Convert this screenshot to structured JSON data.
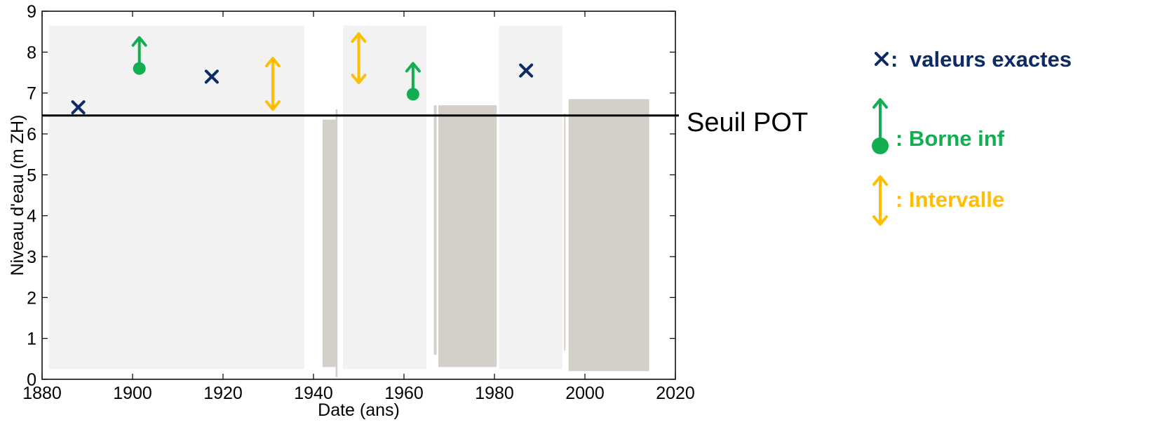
{
  "colors": {
    "exact": "#0b2a66",
    "lower_bound": "#13ad52",
    "interval": "#ffbe00",
    "gauge": "#d4cfc8",
    "historic_period": "#f2f2f2",
    "threshold": "#000000"
  },
  "chart_data": {
    "type": "scatter",
    "xlabel": "Date (ans)",
    "ylabel": "Niveau d'eau (m ZH)",
    "xlim": [
      1880,
      2020
    ],
    "ylim": [
      0,
      9
    ],
    "xticks": [
      1880,
      1900,
      1920,
      1940,
      1960,
      1980,
      2000,
      2020
    ],
    "yticks": [
      0,
      1,
      2,
      3,
      4,
      5,
      6,
      7,
      8,
      9
    ],
    "grid": false,
    "threshold": {
      "label": "Seuil POT",
      "value": 6.45
    },
    "historic_periods": [
      {
        "start": 1881.5,
        "end": 1938,
        "ymin": 0.25,
        "ymax": 8.65
      },
      {
        "start": 1946.5,
        "end": 1965,
        "ymin": 0.25,
        "ymax": 8.65
      },
      {
        "start": 1981,
        "end": 1995,
        "ymin": 0.25,
        "ymax": 8.65
      }
    ],
    "exact_values": [
      {
        "x": 1888,
        "y": 6.65
      },
      {
        "x": 1917.5,
        "y": 7.4
      },
      {
        "x": 1987,
        "y": 7.55
      }
    ],
    "lower_bounds": [
      {
        "x": 1901.5,
        "y": 7.6
      },
      {
        "x": 1962,
        "y": 6.97
      }
    ],
    "intervals": [
      {
        "x": 1931,
        "low": 6.6,
        "high": 7.85
      },
      {
        "x": 1950,
        "low": 7.25,
        "high": 8.45
      }
    ],
    "gauge_records": [
      {
        "start": 1942,
        "end": 1944.9,
        "low": 0.3,
        "high": 6.35
      },
      {
        "start": 1944.9,
        "end": 1945.3,
        "low": 0.05,
        "high": 6.6
      },
      {
        "start": 1966.6,
        "end": 1967.2,
        "low": 0.6,
        "high": 6.7
      },
      {
        "start": 1967.6,
        "end": 1980.5,
        "low": 0.3,
        "high": 6.7
      },
      {
        "start": 1995.4,
        "end": 1995.7,
        "low": 0.7,
        "high": 6.5
      },
      {
        "start": 1996.4,
        "end": 2014.2,
        "low": 0.2,
        "high": 6.85
      }
    ]
  },
  "legend": {
    "exact_label": "valeurs exactes",
    "lower_bound_label": ": Borne inf",
    "interval_label": ": Intervalle"
  }
}
